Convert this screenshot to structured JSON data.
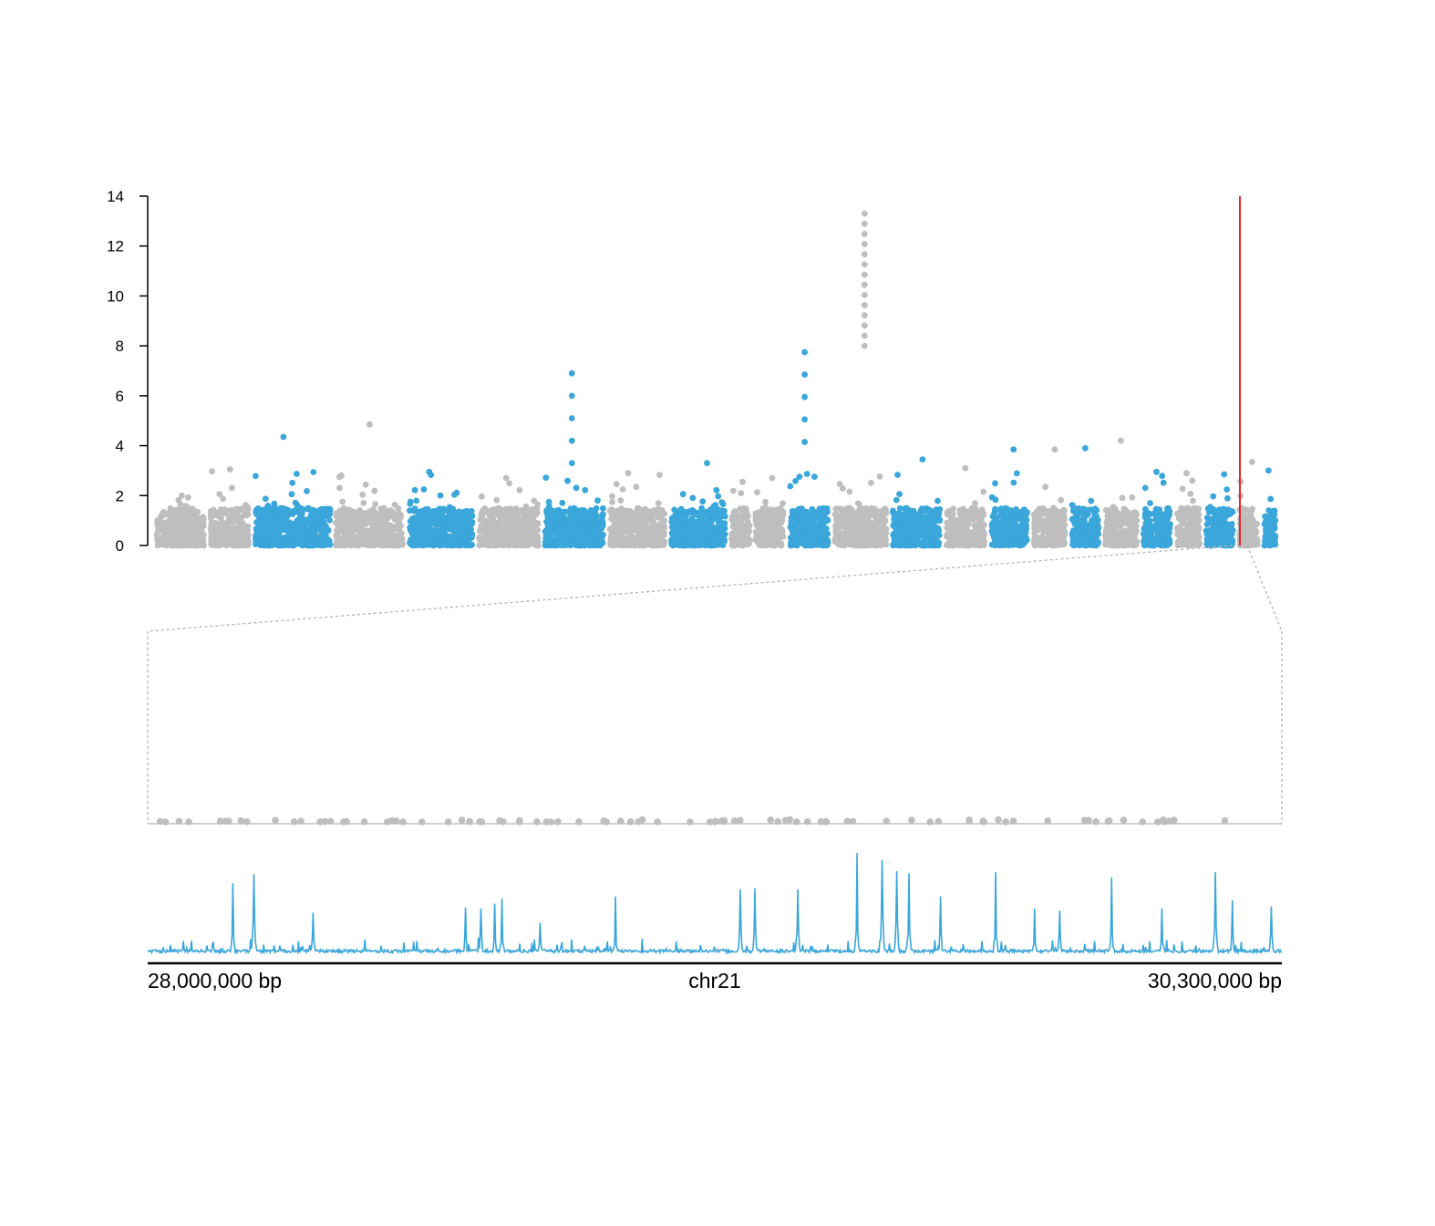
{
  "chart_data": [
    {
      "type": "scatter",
      "panel": "genome-wide manhattan",
      "y_ticks": [
        "0",
        "2",
        "4",
        "6",
        "8",
        "10",
        "12",
        "14"
      ],
      "ylim": [
        0,
        14
      ],
      "xlim": [
        0,
        1
      ],
      "grid": false,
      "colors": {
        "alternate_a": "#bebebe",
        "alternate_b": "#3aa6da",
        "highlight_line": "#e8232a",
        "connector": "#b3b3b3"
      },
      "series": [
        {
          "values_note": "Chromosome blocks alternate grey/blue; max value per block",
          "blocks": [
            {
              "color": "grey",
              "x_range": [
                0.0,
                0.042
              ],
              "max": 2.0
            },
            {
              "color": "grey",
              "x_range": [
                0.048,
                0.082
              ],
              "max": 3.05
            },
            {
              "color": "blue",
              "x_range": [
                0.088,
                0.155
              ],
              "max": 4.35
            },
            {
              "color": "grey",
              "x_range": [
                0.16,
                0.22
              ],
              "max": 4.85
            },
            {
              "color": "blue",
              "x_range": [
                0.226,
                0.282
              ],
              "max": 2.95
            },
            {
              "color": "grey",
              "x_range": [
                0.288,
                0.341
              ],
              "max": 2.7
            },
            {
              "color": "blue",
              "x_range": [
                0.347,
                0.399
              ],
              "max": 6.9
            },
            {
              "color": "grey",
              "x_range": [
                0.405,
                0.454
              ],
              "max": 2.9
            },
            {
              "color": "blue",
              "x_range": [
                0.46,
                0.508
              ],
              "max": 3.3
            },
            {
              "color": "grey",
              "x_range": [
                0.514,
                0.53
              ],
              "max": 2.55
            },
            {
              "color": "grey",
              "x_range": [
                0.535,
                0.56
              ],
              "max": 2.7
            },
            {
              "color": "blue",
              "x_range": [
                0.566,
                0.6
              ],
              "max": 7.75
            },
            {
              "color": "grey",
              "x_range": [
                0.606,
                0.652
              ],
              "max": 13.3
            },
            {
              "color": "blue",
              "x_range": [
                0.658,
                0.7
              ],
              "max": 3.45
            },
            {
              "color": "grey",
              "x_range": [
                0.706,
                0.74
              ],
              "max": 3.1
            },
            {
              "color": "blue",
              "x_range": [
                0.746,
                0.778
              ],
              "max": 3.85
            },
            {
              "color": "grey",
              "x_range": [
                0.784,
                0.812
              ],
              "max": 3.85
            },
            {
              "color": "blue",
              "x_range": [
                0.818,
                0.842
              ],
              "max": 3.9
            },
            {
              "color": "grey",
              "x_range": [
                0.848,
                0.876
              ],
              "max": 4.2
            },
            {
              "color": "blue",
              "x_range": [
                0.882,
                0.906
              ],
              "max": 2.95
            },
            {
              "color": "grey",
              "x_range": [
                0.912,
                0.932
              ],
              "max": 2.9
            },
            {
              "color": "blue",
              "x_range": [
                0.938,
                0.962
              ],
              "max": 2.85
            },
            {
              "color": "grey",
              "x_range": [
                0.968,
                0.984
              ],
              "max": 3.35
            },
            {
              "color": "blue",
              "x_range": [
                0.99,
                1.0
              ],
              "max": 3.0
            }
          ]
        }
      ],
      "highlight_x": 0.9785,
      "zoom_window_x": [
        0.9775,
        0.9795
      ]
    },
    {
      "type": "scatter",
      "panel": "zoom region",
      "xlim": [
        28000000,
        30300000
      ],
      "ylim": [
        0,
        14
      ],
      "points_color": "#bebebe",
      "note": "points clustered just above baseline (approx 0 to 0.12)"
    },
    {
      "type": "line",
      "panel": "signal track",
      "xlim": [
        28000000,
        30300000
      ],
      "ylim": [
        0,
        1
      ],
      "color": "#3aa6da",
      "peaks": [
        {
          "x": 28173000,
          "y": 0.7
        },
        {
          "x": 28216000,
          "y": 0.79
        },
        {
          "x": 28336000,
          "y": 0.41
        },
        {
          "x": 28645000,
          "y": 0.46
        },
        {
          "x": 28675000,
          "y": 0.45
        },
        {
          "x": 28703000,
          "y": 0.5
        },
        {
          "x": 28718000,
          "y": 0.55
        },
        {
          "x": 28795000,
          "y": 0.31
        },
        {
          "x": 28948000,
          "y": 0.57
        },
        {
          "x": 29201000,
          "y": 0.64
        },
        {
          "x": 29231000,
          "y": 0.65
        },
        {
          "x": 29318000,
          "y": 0.64
        },
        {
          "x": 29438000,
          "y": 1.0
        },
        {
          "x": 29489000,
          "y": 0.93
        },
        {
          "x": 29519000,
          "y": 0.82
        },
        {
          "x": 29543000,
          "y": 0.8
        },
        {
          "x": 29608000,
          "y": 0.57
        },
        {
          "x": 29719000,
          "y": 0.81
        },
        {
          "x": 29798000,
          "y": 0.45
        },
        {
          "x": 29850000,
          "y": 0.43
        },
        {
          "x": 29955000,
          "y": 0.76
        },
        {
          "x": 30056000,
          "y": 0.45
        },
        {
          "x": 30166000,
          "y": 0.81
        },
        {
          "x": 30199000,
          "y": 0.53
        },
        {
          "x": 30279000,
          "y": 0.47
        }
      ]
    }
  ],
  "axis": {
    "start_label": "28,000,000 bp",
    "mid_label": "chr21",
    "end_label": "30,300,000 bp"
  }
}
